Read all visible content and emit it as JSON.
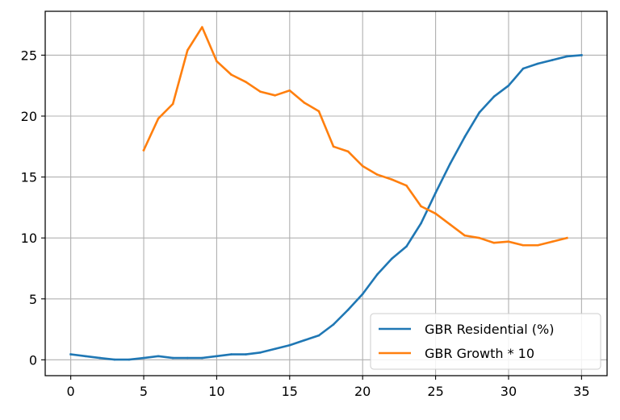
{
  "chart_data": {
    "type": "line",
    "title": "",
    "xlabel": "",
    "ylabel": "",
    "xlim": [
      -1.75,
      36.75
    ],
    "ylim": [
      -1.3,
      28.6
    ],
    "x_ticks": [
      0,
      5,
      10,
      15,
      20,
      25,
      30,
      35
    ],
    "y_ticks": [
      0,
      5,
      10,
      15,
      20,
      25
    ],
    "grid": true,
    "legend_position": "lower-right",
    "series": [
      {
        "name": "GBR Residential (%)",
        "color": "#1f77b4",
        "x": [
          0,
          1,
          2,
          3,
          4,
          5,
          6,
          7,
          8,
          9,
          10,
          11,
          12,
          13,
          14,
          15,
          16,
          17,
          18,
          19,
          20,
          21,
          22,
          23,
          24,
          25,
          26,
          27,
          28,
          29,
          30,
          31,
          32,
          33,
          34,
          35
        ],
        "y": [
          0.45,
          0.3,
          0.15,
          0.02,
          0.02,
          0.15,
          0.3,
          0.15,
          0.15,
          0.15,
          0.3,
          0.45,
          0.45,
          0.6,
          0.9,
          1.2,
          1.6,
          2.0,
          2.9,
          4.1,
          5.4,
          7.0,
          8.3,
          9.3,
          11.2,
          13.7,
          16.1,
          18.3,
          20.3,
          21.6,
          22.5,
          23.9,
          24.3,
          24.6,
          24.9,
          25.0
        ]
      },
      {
        "name": "GBR Growth * 10",
        "color": "#ff7f0e",
        "x": [
          5,
          6,
          7,
          8,
          9,
          10,
          11,
          12,
          13,
          14,
          15,
          16,
          17,
          18,
          19,
          20,
          21,
          22,
          23,
          24,
          25,
          26,
          27,
          28,
          29,
          30,
          31,
          32,
          33,
          34
        ],
        "y": [
          17.2,
          19.8,
          21.0,
          25.4,
          27.3,
          24.5,
          23.4,
          22.8,
          22.0,
          21.7,
          22.1,
          21.1,
          20.4,
          17.5,
          17.1,
          15.9,
          15.2,
          14.8,
          14.3,
          12.6,
          12.0,
          11.1,
          10.2,
          10.0,
          9.6,
          9.7,
          9.4,
          9.4,
          9.7,
          10.0
        ]
      }
    ]
  }
}
